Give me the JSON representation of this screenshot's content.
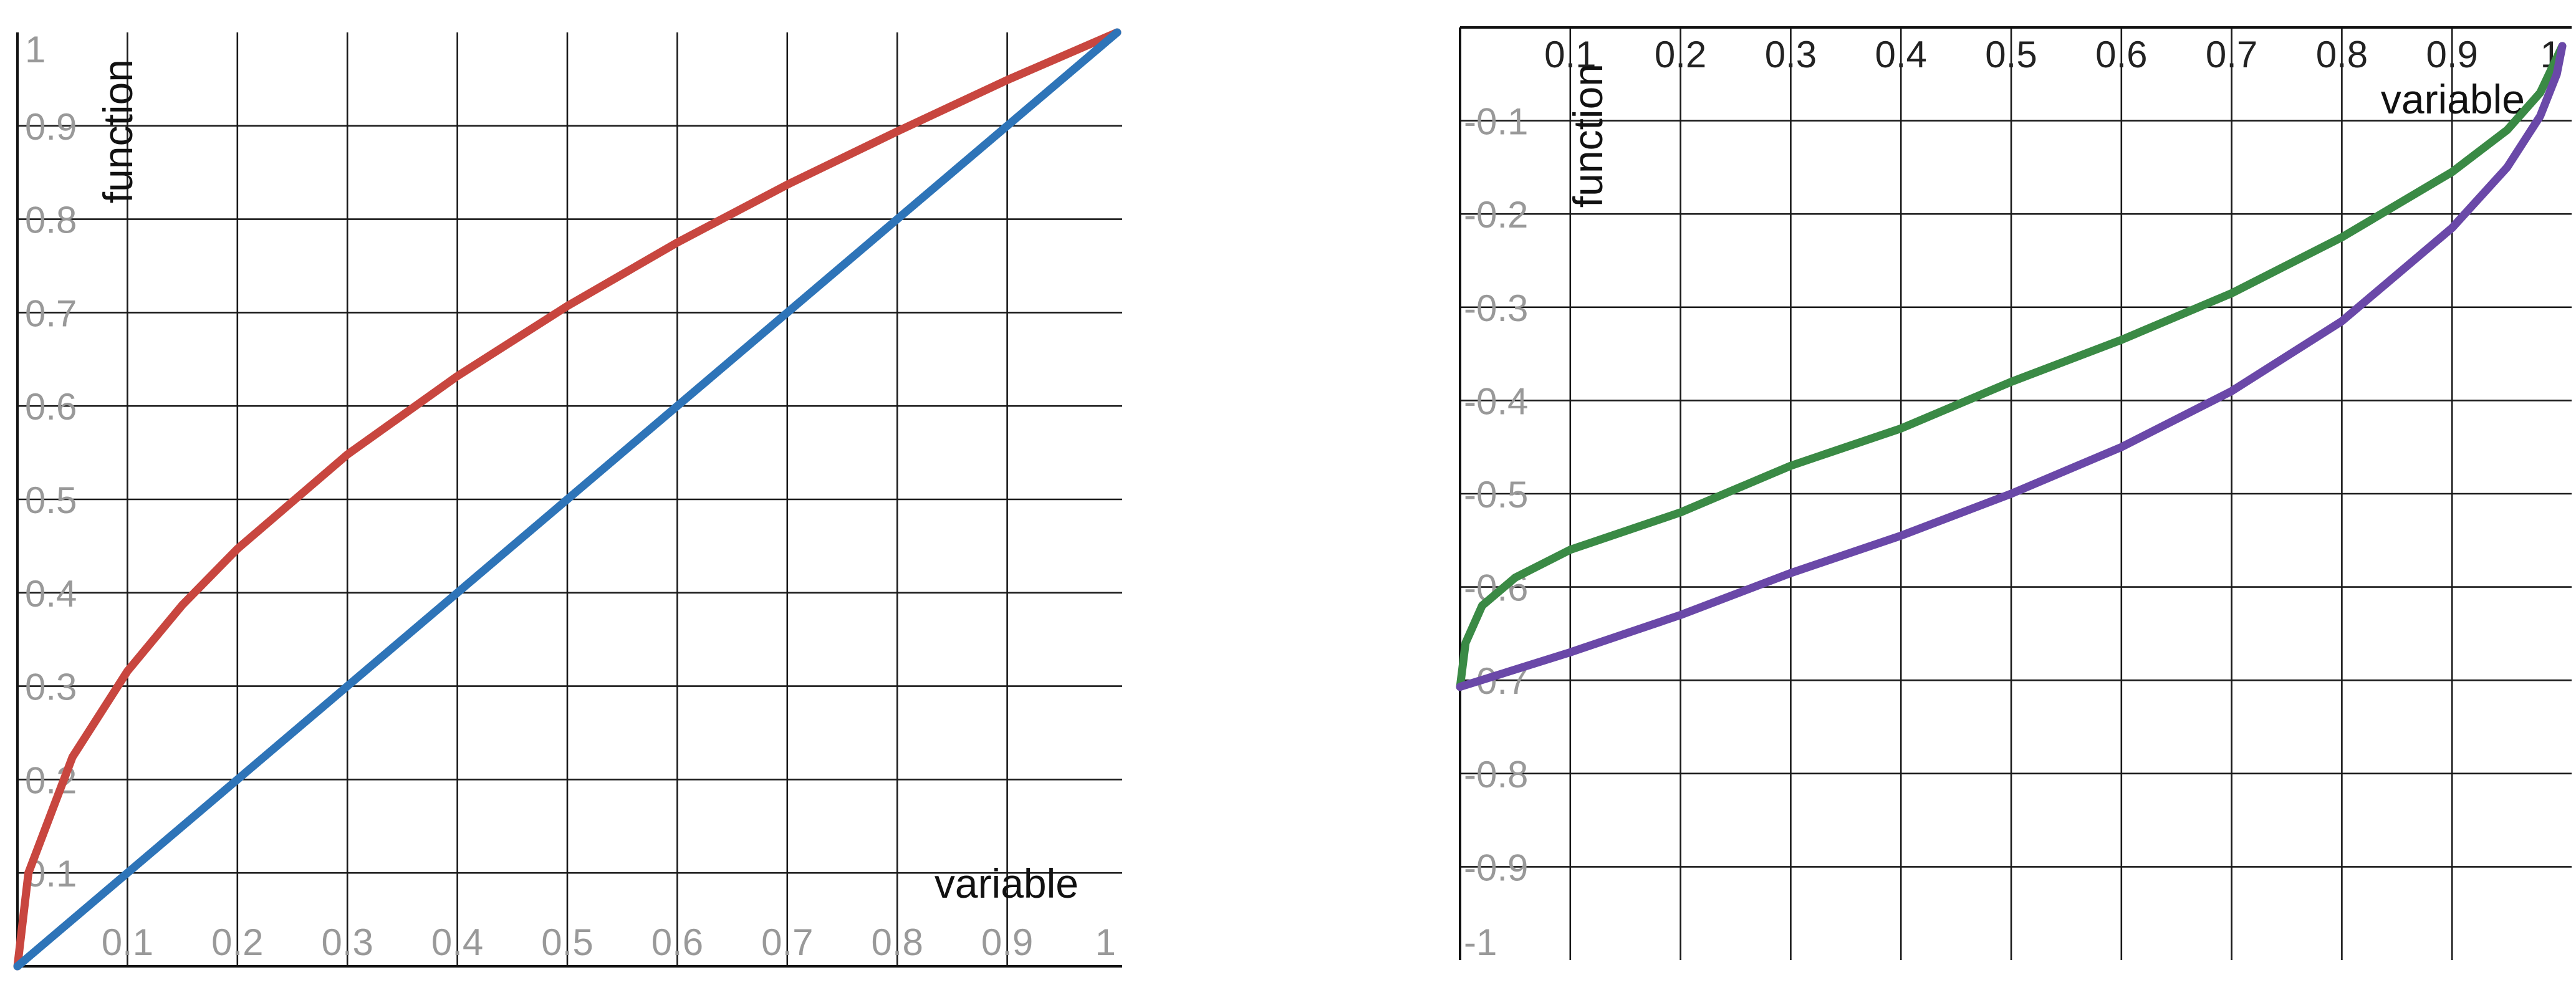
{
  "chart_data": [
    {
      "type": "line",
      "xlabel": "variable",
      "ylabel": "function",
      "xlim": [
        0,
        1
      ],
      "ylim": [
        0,
        1
      ],
      "grid": true,
      "x_ticks": [
        "0.1",
        "0.2",
        "0.3",
        "0.4",
        "0.5",
        "0.6",
        "0.7",
        "0.8",
        "0.9",
        "1"
      ],
      "y_ticks": [
        "0.1",
        "0.2",
        "0.3",
        "0.4",
        "0.5",
        "0.6",
        "0.7",
        "0.8",
        "0.9",
        "1"
      ],
      "series": [
        {
          "color": "#c8463f",
          "x": [
            0,
            0.01,
            0.05,
            0.1,
            0.15,
            0.2,
            0.3,
            0.4,
            0.5,
            0.6,
            0.7,
            0.8,
            0.9,
            1.0
          ],
          "y": [
            0,
            0.1,
            0.224,
            0.316,
            0.387,
            0.447,
            0.548,
            0.632,
            0.707,
            0.775,
            0.837,
            0.894,
            0.949,
            1.0
          ]
        },
        {
          "color": "#2e74b8",
          "x": [
            0,
            0.1,
            0.2,
            0.3,
            0.4,
            0.5,
            0.6,
            0.7,
            0.8,
            0.9,
            1.0
          ],
          "y": [
            0,
            0.1,
            0.2,
            0.3,
            0.4,
            0.5,
            0.6,
            0.7,
            0.8,
            0.9,
            1.0
          ]
        }
      ]
    },
    {
      "type": "line",
      "xlabel": "variable",
      "ylabel": "function",
      "xlim": [
        0,
        1
      ],
      "ylim": [
        -1,
        0
      ],
      "grid": true,
      "x_ticks": [
        "0.1",
        "0.2",
        "0.3",
        "0.4",
        "0.5",
        "0.6",
        "0.7",
        "0.8",
        "0.9",
        "1"
      ],
      "y_ticks": [
        "-0.1",
        "-0.2",
        "-0.3",
        "-0.4",
        "-0.5",
        "-0.6",
        "-0.7",
        "-0.8",
        "-0.9",
        "-1"
      ],
      "series": [
        {
          "color": "#3a8a45",
          "x": [
            0,
            0.005,
            0.02,
            0.05,
            0.1,
            0.2,
            0.3,
            0.4,
            0.5,
            0.6,
            0.7,
            0.8,
            0.9,
            0.95,
            0.98,
            1.0
          ],
          "y": [
            -0.707,
            -0.66,
            -0.62,
            -0.59,
            -0.56,
            -0.52,
            -0.47,
            -0.43,
            -0.38,
            -0.335,
            -0.285,
            -0.225,
            -0.155,
            -0.11,
            -0.07,
            -0.02
          ]
        },
        {
          "color": "#6a48a8",
          "x": [
            0,
            0.1,
            0.2,
            0.3,
            0.4,
            0.5,
            0.6,
            0.7,
            0.8,
            0.9,
            0.95,
            0.98,
            0.995,
            1.0
          ],
          "y": [
            -0.707,
            -0.67,
            -0.63,
            -0.585,
            -0.545,
            -0.5,
            -0.45,
            -0.39,
            -0.315,
            -0.215,
            -0.15,
            -0.095,
            -0.05,
            -0.02
          ]
        }
      ]
    }
  ]
}
